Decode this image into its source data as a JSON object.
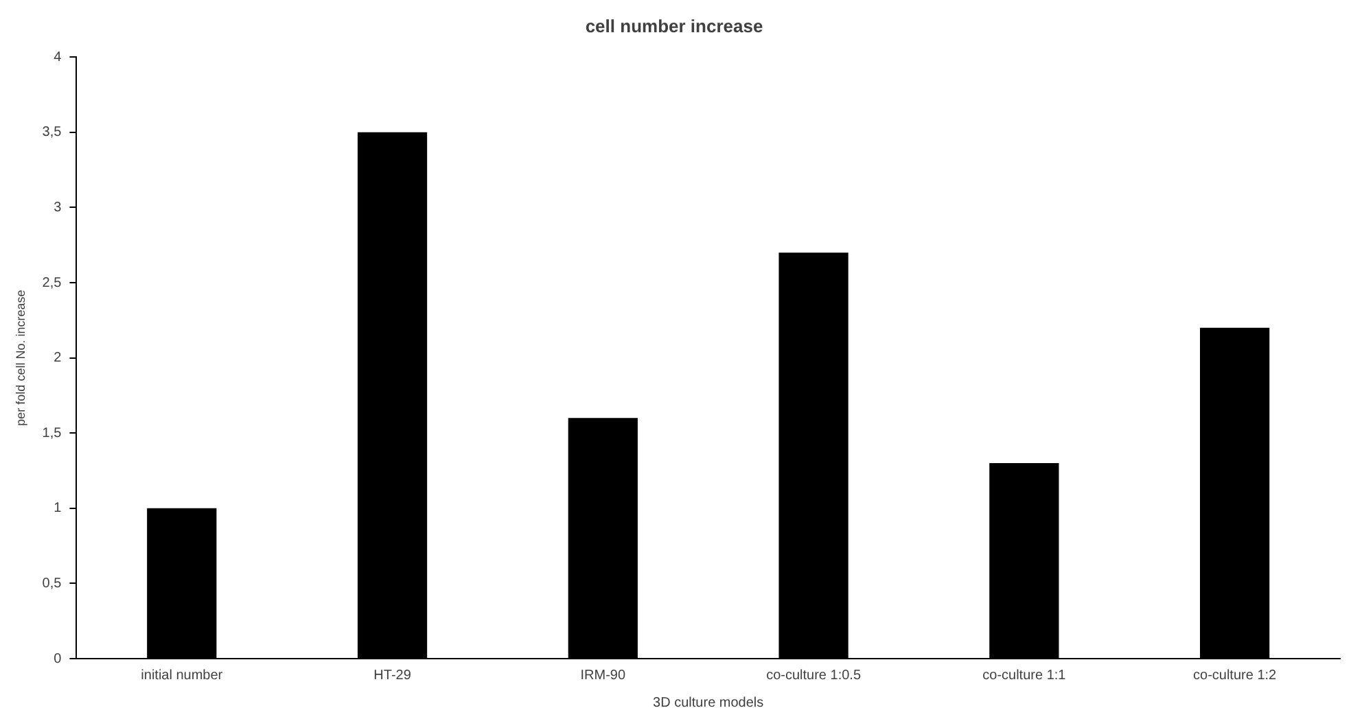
{
  "chart_data": {
    "type": "bar",
    "title": "cell number increase",
    "xlabel": "3D culture models",
    "ylabel": "per fold cell No. increase",
    "categories": [
      "initial number",
      "HT-29",
      "IRM-90",
      "co-culture 1:0.5",
      "co-culture 1:1",
      "co-culture 1:2"
    ],
    "values": [
      1,
      3.5,
      1.6,
      2.7,
      1.3,
      2.2
    ],
    "color": "#000000",
    "ylim": [
      0,
      4
    ],
    "yticks": [
      0,
      {
        "value": 0.5,
        "label": "0,5"
      },
      1,
      {
        "value": 1.5,
        "label": "1,5"
      },
      2,
      {
        "value": 2.5,
        "label": "2,5"
      },
      3,
      {
        "value": 3.5,
        "label": "3,5"
      },
      4
    ],
    "grid": false,
    "legend": false
  }
}
